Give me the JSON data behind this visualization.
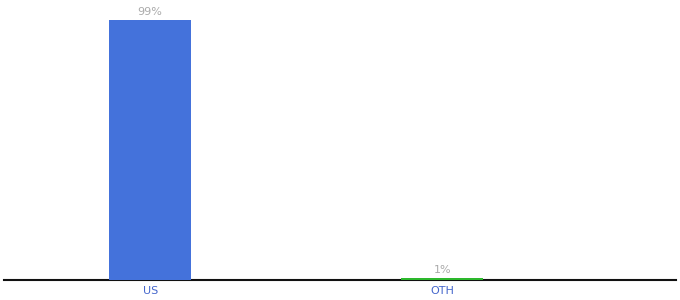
{
  "categories": [
    "US",
    "OTH"
  ],
  "values": [
    99,
    1
  ],
  "bar_colors": [
    "#4472db",
    "#2db82d"
  ],
  "labels": [
    "99%",
    "1%"
  ],
  "background_color": "#ffffff",
  "text_color": "#aaaaaa",
  "label_fontsize": 8,
  "tick_fontsize": 8,
  "tick_color": "#4466cc",
  "ylim": [
    0,
    105
  ],
  "bar_width": 0.28
}
